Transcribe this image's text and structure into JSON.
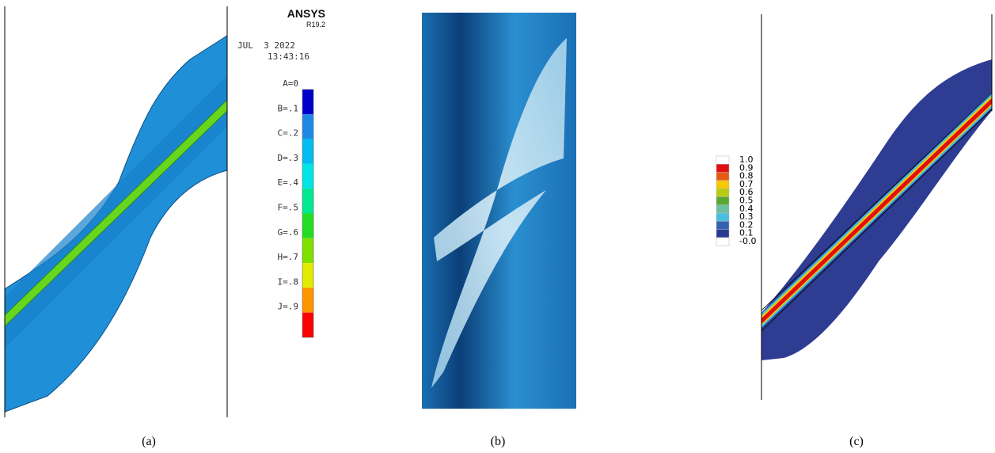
{
  "panel_a": {
    "brand": "ANSYS",
    "version": "R19.2",
    "date": "JUL  3 2022",
    "time": "13:43:16",
    "legend": [
      {
        "label": "A=0",
        "color": "#0000cc"
      },
      {
        "label": "B=.1",
        "color": "#1e88e5"
      },
      {
        "label": "C=.2",
        "color": "#00bcf0"
      },
      {
        "label": "D=.3",
        "color": "#00e6e6"
      },
      {
        "label": "E=.4",
        "color": "#00e890"
      },
      {
        "label": "F=.5",
        "color": "#22dd22"
      },
      {
        "label": "G=.6",
        "color": "#80e000"
      },
      {
        "label": "H=.7",
        "color": "#e2ea00"
      },
      {
        "label": "I=.8",
        "color": "#ff9400"
      },
      {
        "label": "J=.9",
        "color": "#ff0000"
      }
    ]
  },
  "panel_c": {
    "legend": [
      {
        "label": "1.0",
        "color": "#ffffff"
      },
      {
        "label": "0.9",
        "color": "#e01010"
      },
      {
        "label": "0.8",
        "color": "#e85a10"
      },
      {
        "label": "0.7",
        "color": "#f8c800"
      },
      {
        "label": "0.6",
        "color": "#b8cc10"
      },
      {
        "label": "0.5",
        "color": "#5aa832"
      },
      {
        "label": "0.4",
        "color": "#6cc0a0"
      },
      {
        "label": "0.3",
        "color": "#48c0e0"
      },
      {
        "label": "0.2",
        "color": "#3462b0"
      },
      {
        "label": "0.1",
        "color": "#2a3a90"
      },
      {
        "label": "-0.0",
        "color": "#ffffff"
      }
    ]
  },
  "captions": [
    "(a)",
    "(b)",
    "(c)"
  ]
}
